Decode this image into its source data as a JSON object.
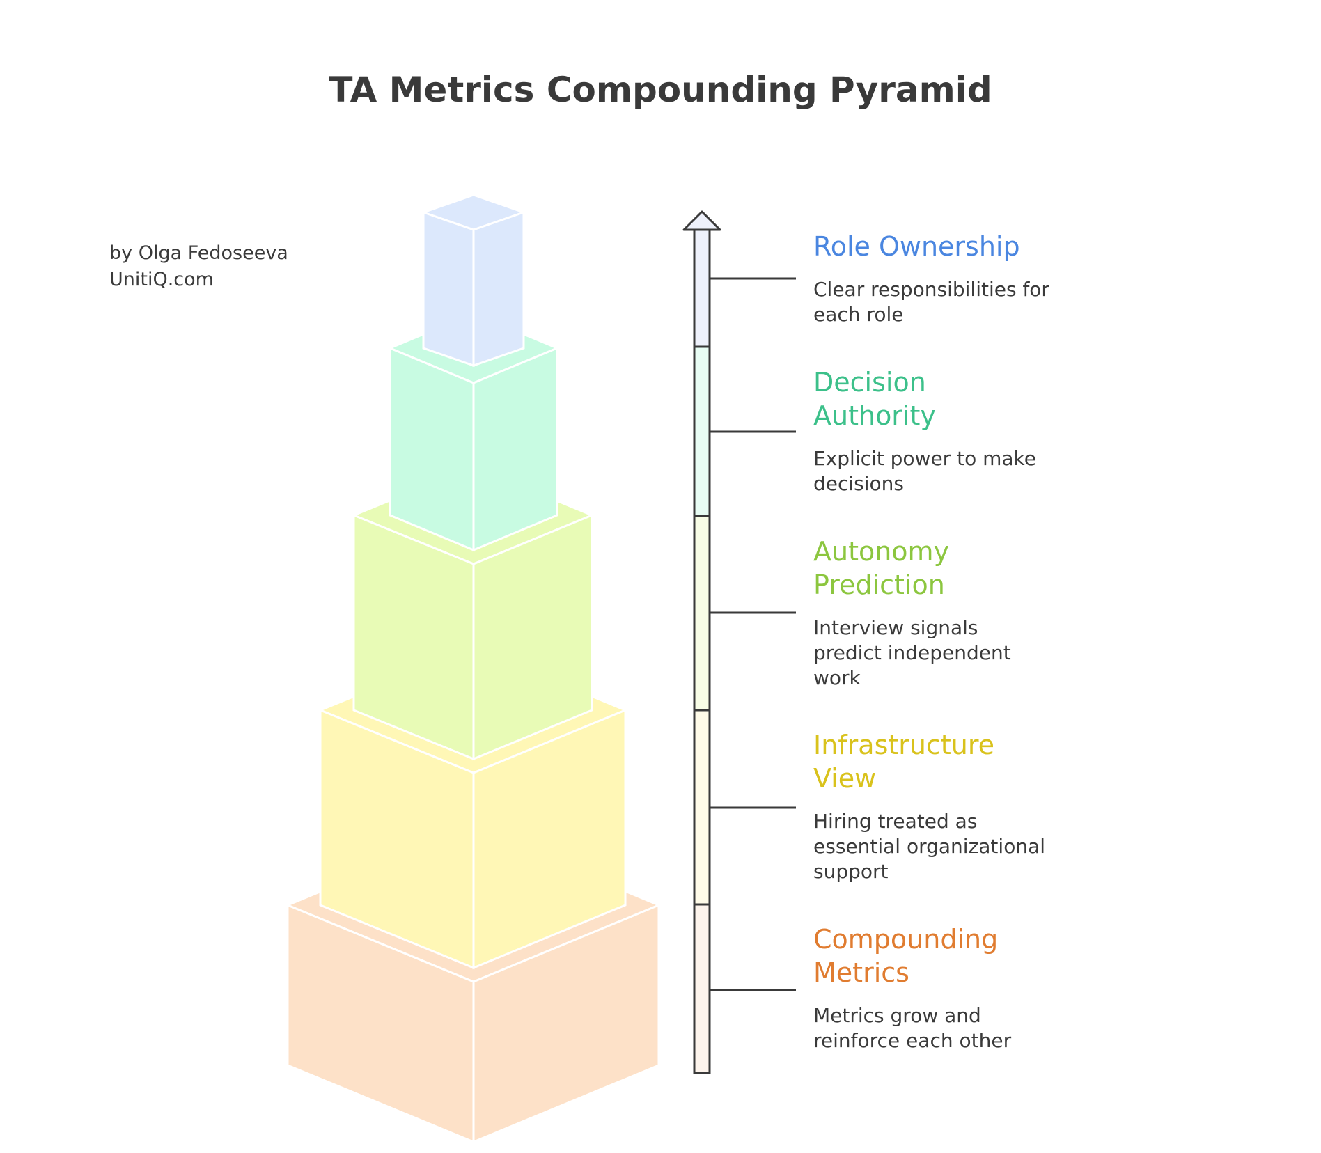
{
  "title": "TA Metrics Compounding Pyramid",
  "author": {
    "line1": "by Olga Fedoseeva",
    "line2": "UnitiQ.com"
  },
  "levels": [
    {
      "title_line1": "Role Ownership",
      "title_line2": "",
      "desc_lines": [
        "Clear responsibilities for",
        "each role"
      ],
      "title_color": "#4a86e0",
      "block_color": "#dce8fc",
      "bar_color": "#eef1fb"
    },
    {
      "title_line1": "Decision",
      "title_line2": "Authority",
      "desc_lines": [
        "Explicit power to make",
        "decisions"
      ],
      "title_color": "#3cc08a",
      "block_color": "#c8fbe2",
      "bar_color": "#e8fdf4"
    },
    {
      "title_line1": "Autonomy",
      "title_line2": "Prediction",
      "desc_lines": [
        "Interview signals",
        "predict independent",
        "work"
      ],
      "title_color": "#8cc63f",
      "block_color": "#e8fbb6",
      "bar_color": "#f8fde6"
    },
    {
      "title_line1": "Infrastructure",
      "title_line2": "View",
      "desc_lines": [
        "Hiring treated as",
        "essential organizational",
        "support"
      ],
      "title_color": "#d9c21c",
      "block_color": "#fff7b6",
      "bar_color": "#fffbe8"
    },
    {
      "title_line1": "Compounding",
      "title_line2": "Metrics",
      "desc_lines": [
        "Metrics grow and",
        "reinforce each other"
      ],
      "title_color": "#e07c30",
      "block_color": "#fde1c8",
      "bar_color": "#fdf4ec"
    }
  ]
}
